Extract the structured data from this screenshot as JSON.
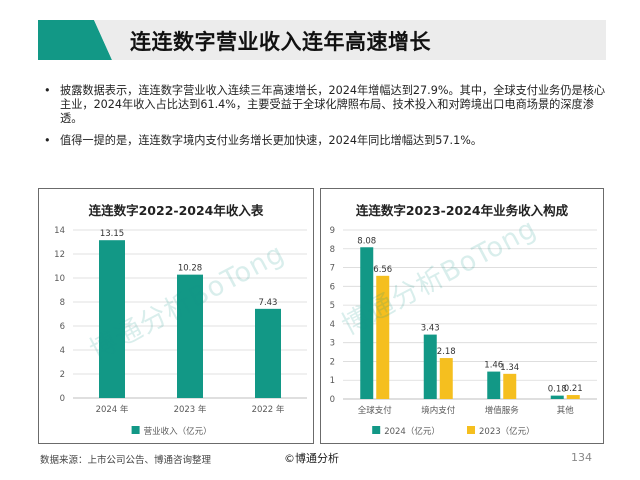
{
  "title": "连连数字营业收入连年高速增长",
  "bullets": [
    "披露数据表示，连连数字营业收入连续三年高速增长，2024年增幅达到27.9%。其中，全球支付业务仍是核心主业，2024年收入占比达到61.4%，主要受益于全球化牌照布局、技术投入和对跨境出口电商场景的深度渗透。",
    "值得一提的是，连连数字境内支付业务增长更加快速，2024年同比增幅达到57.1%。"
  ],
  "bullet_symbol": "•",
  "watermark": "博通分析BoTong",
  "footer": {
    "source": "数据来源：上市公司公告、博通咨询整理",
    "brand": "©博通分析",
    "page": "134"
  },
  "colors": {
    "teal": "#129886",
    "orange": "#F5BF1F",
    "grid": "#d9d9d9",
    "axis_text": "#595959"
  },
  "chart_data": [
    {
      "type": "bar",
      "title": "连连数字2022-2024年收入表",
      "categories": [
        "2024 年",
        "2023 年",
        "2022 年"
      ],
      "series": [
        {
          "name": "营业收入（亿元）",
          "values": [
            13.15,
            10.28,
            7.43
          ],
          "color": "#129886"
        }
      ],
      "data_labels": [
        "13.15",
        "10.28",
        "7.43"
      ],
      "yticks": [
        0,
        2,
        4,
        6,
        8,
        10,
        12,
        14
      ],
      "ylim": [
        0,
        14
      ],
      "grid": true,
      "legend": "bottom"
    },
    {
      "type": "bar",
      "title": "连连数字2023-2024年业务收入构成",
      "categories": [
        "全球支付",
        "境内支付",
        "增值服务",
        "其他"
      ],
      "series": [
        {
          "name": "2024（亿元）",
          "values": [
            8.08,
            3.43,
            1.46,
            0.18
          ],
          "color": "#129886",
          "labels": [
            "8.08",
            "3.43",
            "1.46",
            "0.18"
          ]
        },
        {
          "name": "2023（亿元）",
          "values": [
            6.56,
            2.18,
            1.34,
            0.21
          ],
          "color": "#F5BF1F",
          "labels": [
            "6.56",
            "2.18",
            "1.34",
            "0.21"
          ]
        }
      ],
      "yticks": [
        0,
        1,
        2,
        3,
        4,
        5,
        6,
        7,
        8,
        9
      ],
      "ylim": [
        0,
        9
      ],
      "grid": true,
      "legend": "bottom"
    }
  ]
}
